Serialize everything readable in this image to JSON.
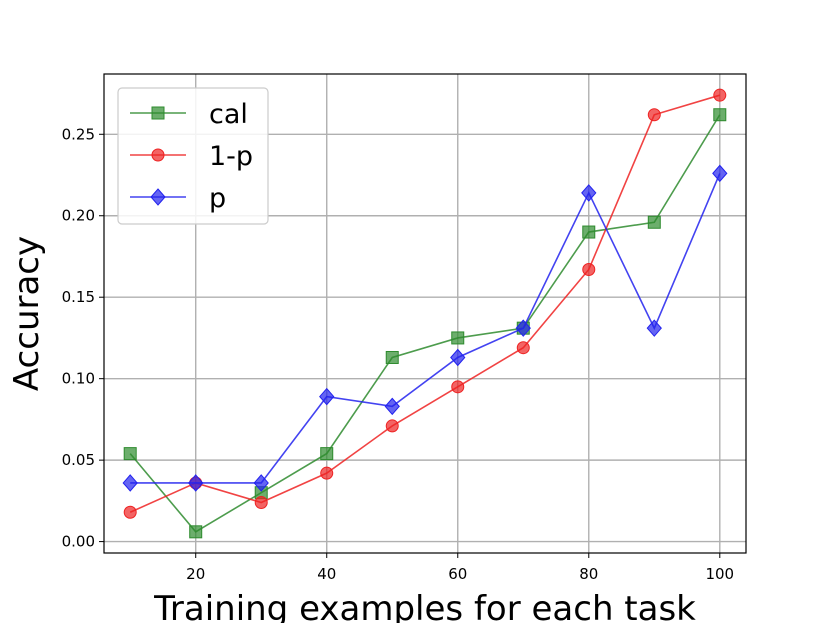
{
  "chart_data": {
    "type": "line",
    "title": "",
    "xlabel": "Training examples for each task",
    "ylabel": "Accuracy",
    "x": [
      10,
      20,
      30,
      40,
      50,
      60,
      70,
      80,
      90,
      100
    ],
    "xlim": [
      6,
      104
    ],
    "ylim": [
      -0.007,
      0.287
    ],
    "xticks": [
      20,
      40,
      60,
      80,
      100
    ],
    "xtick_labels": [
      "20",
      "40",
      "60",
      "80",
      "100"
    ],
    "yticks": [
      0.0,
      0.05,
      0.1,
      0.15,
      0.2,
      0.25
    ],
    "ytick_labels": [
      "0.00",
      "0.05",
      "0.10",
      "0.15",
      "0.20",
      "0.25"
    ],
    "grid": true,
    "legend_position": "top-left",
    "series": [
      {
        "name": "cal",
        "color": "#2e8b2e",
        "marker": "square",
        "values": [
          0.054,
          0.006,
          0.03,
          0.054,
          0.113,
          0.125,
          0.131,
          0.19,
          0.196,
          0.262
        ]
      },
      {
        "name": "1-p",
        "color": "#ee2222",
        "marker": "circle",
        "values": [
          0.018,
          0.036,
          0.024,
          0.042,
          0.071,
          0.095,
          0.119,
          0.167,
          0.262,
          0.274
        ]
      },
      {
        "name": "p",
        "color": "#2222ee",
        "marker": "diamond",
        "values": [
          0.036,
          0.036,
          0.036,
          0.089,
          0.083,
          0.113,
          0.131,
          0.214,
          0.131,
          0.226
        ]
      }
    ]
  }
}
